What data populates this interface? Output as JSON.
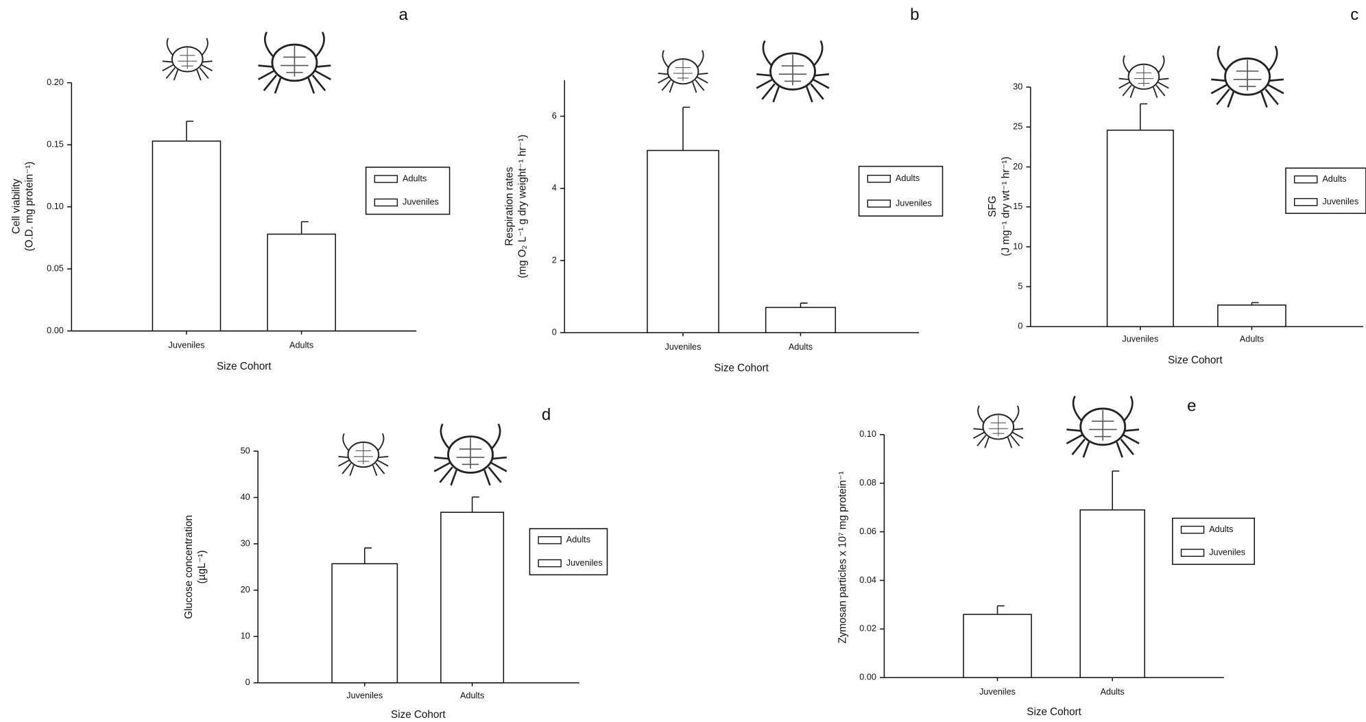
{
  "chart_data": [
    {
      "type": "bar",
      "panel": "a",
      "ylabel": [
        "Cell viability",
        "(O.D. mg protein⁻¹)"
      ],
      "xlabel": "Size Cohort",
      "categories": [
        "Juveniles",
        "Adults"
      ],
      "values": [
        0.153,
        0.078
      ],
      "errors": [
        0.016,
        0.01
      ],
      "legend": [
        "Adults",
        "Juveniles"
      ],
      "color": "#ffffff",
      "ylim": [
        0,
        0.2
      ],
      "yticks": [
        {
          "value": 0,
          "label": "0.00"
        },
        0.05,
        {
          "value": 0.1,
          "label": "0.10"
        },
        0.15,
        {
          "value": 0.2,
          "label": "0.20"
        }
      ]
    },
    {
      "type": "bar",
      "panel": "b",
      "ylabel": [
        "Respiration rates",
        "(mg O₂ L⁻¹ g dry weight⁻¹ hr⁻¹)"
      ],
      "xlabel": "Size Cohort",
      "categories": [
        "Juveniles",
        "Adults"
      ],
      "values": [
        5.05,
        0.7
      ],
      "errors": [
        1.2,
        0.12
      ],
      "legend": [
        "Adults",
        "Juveniles"
      ],
      "color": "#ffffff",
      "ylim": [
        0,
        7
      ],
      "yticks": [
        0,
        2,
        4,
        6
      ]
    },
    {
      "type": "bar",
      "panel": "c",
      "ylabel": [
        "SFG",
        "(J mg⁻¹ dry wt⁻¹ hr⁻¹)"
      ],
      "xlabel": "Size Cohort",
      "categories": [
        "Juveniles",
        "Adults"
      ],
      "values": [
        24.6,
        2.7
      ],
      "errors": [
        3.3,
        0.3
      ],
      "legend": [
        "Adults",
        "Juveniles"
      ],
      "color": "#ffffff",
      "ylim": [
        0,
        30
      ],
      "yticks": [
        0,
        5,
        10,
        15,
        20,
        25,
        30
      ]
    },
    {
      "type": "bar",
      "panel": "d",
      "ylabel": [
        "Glucose concentration",
        "(µgL⁻¹)"
      ],
      "xlabel": "Size Cohort",
      "categories": [
        "Juveniles",
        "Adults"
      ],
      "values": [
        25.7,
        36.8
      ],
      "errors": [
        3.4,
        3.3
      ],
      "legend": [
        "Adults",
        "Juveniles"
      ],
      "color": "#ffffff",
      "ylim": [
        0,
        50
      ],
      "yticks": [
        0,
        10,
        20,
        30,
        40,
        50
      ]
    },
    {
      "type": "bar",
      "panel": "e",
      "ylabel": [
        "Zymosan particles x 10⁷ mg protein⁻¹"
      ],
      "xlabel": "Size Cohort",
      "categories": [
        "Juveniles",
        "Adults"
      ],
      "values": [
        0.026,
        0.069
      ],
      "errors": [
        0.0035,
        0.016
      ],
      "legend": [
        "Adults",
        "Juveniles"
      ],
      "color": "#ffffff",
      "ylim": [
        0,
        0.1
      ],
      "yticks": [
        {
          "value": 0,
          "label": "0.00"
        },
        0.02,
        0.04,
        0.06,
        0.08,
        {
          "value": 0.1,
          "label": "0.10"
        }
      ]
    }
  ]
}
